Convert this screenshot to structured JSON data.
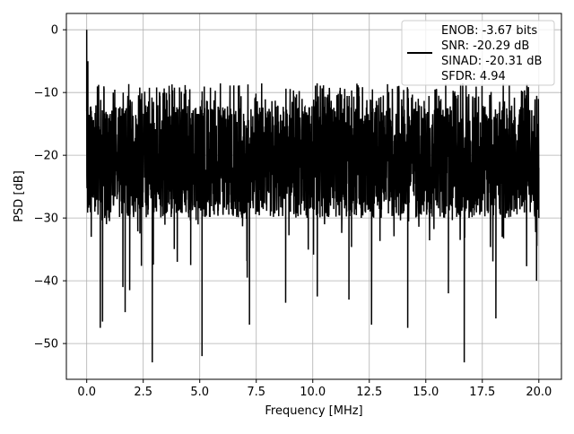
{
  "chart_data": {
    "type": "line",
    "title": "",
    "xlabel": "Frequency [MHz]",
    "ylabel": "PSD [dB]",
    "xlim": [
      -0.9,
      21.0
    ],
    "ylim": [
      -55.7,
      2.6
    ],
    "x_ticks": [
      0.0,
      2.5,
      5.0,
      7.5,
      10.0,
      12.5,
      15.0,
      17.5,
      20.0
    ],
    "x_tick_labels": [
      "0.0",
      "2.5",
      "5.0",
      "7.5",
      "10.0",
      "12.5",
      "15.0",
      "17.5",
      "20.0"
    ],
    "y_ticks": [
      0,
      -10,
      -20,
      -30,
      -40,
      -50
    ],
    "y_tick_labels": [
      "0",
      "−10",
      "−20",
      "−30",
      "−40",
      "−50"
    ],
    "grid": true,
    "legend_position": "top-right",
    "legend_lines": [
      "ENOB: -3.67 bits",
      "SNR: -20.29 dB",
      "SINAD: -20.31 dB",
      "SFDR: 4.94"
    ],
    "series": [
      {
        "color": "#000000",
        "x_range": [
          0.0,
          20.0
        ],
        "description_samples": [
          [
            0.0,
            0.0
          ],
          [
            0.02,
            -22.0
          ],
          [
            0.05,
            -5.0
          ],
          [
            0.1,
            -20.0
          ],
          [
            0.2,
            -33.0
          ],
          [
            0.6,
            -47.5
          ],
          [
            0.7,
            -46.5
          ],
          [
            1.6,
            -41.0
          ],
          [
            1.7,
            -45.0
          ],
          [
            1.9,
            -41.5
          ],
          [
            2.9,
            -53.0
          ],
          [
            4.6,
            -37.5
          ],
          [
            5.1,
            -52.0
          ],
          [
            7.1,
            -39.5
          ],
          [
            7.2,
            -47.0
          ],
          [
            8.8,
            -43.5
          ],
          [
            10.2,
            -42.5
          ],
          [
            11.6,
            -43.0
          ],
          [
            12.6,
            -47.0
          ],
          [
            14.2,
            -47.5
          ],
          [
            16.0,
            -42.0
          ],
          [
            16.7,
            -53.0
          ],
          [
            18.1,
            -46.0
          ],
          [
            19.9,
            -40.0
          ],
          [
            20.0,
            -22.0
          ]
        ],
        "typical_band_db": [
          -30,
          -12
        ],
        "peak_min_db": -8.5
      }
    ]
  }
}
